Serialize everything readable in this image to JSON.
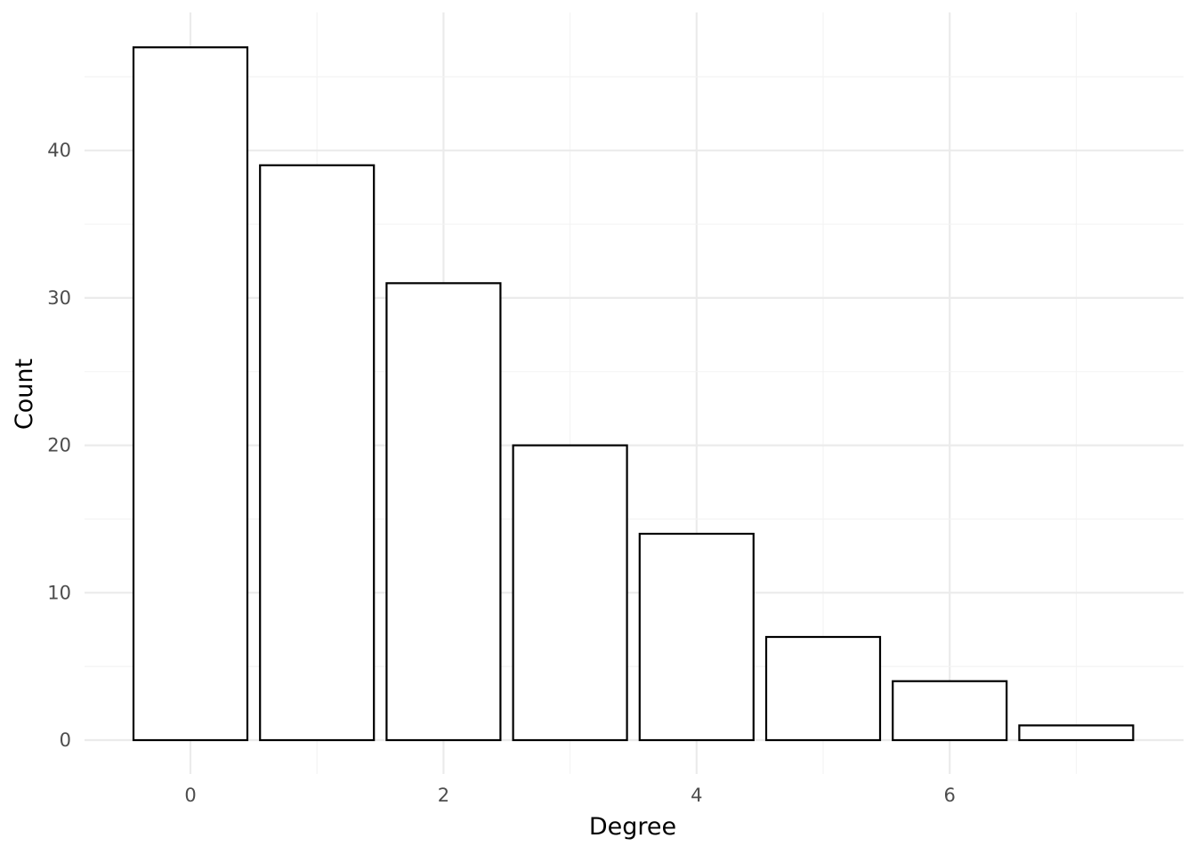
{
  "chart_data": {
    "type": "bar",
    "title": "",
    "xlabel": "Degree",
    "ylabel": "Count",
    "x": [
      0,
      1,
      2,
      3,
      4,
      5,
      6,
      7
    ],
    "values": [
      47,
      39,
      31,
      20,
      14,
      7,
      4,
      1
    ],
    "xlim": [
      -0.5,
      7.5
    ],
    "ylim": [
      0,
      47
    ],
    "x_ticks": [
      0,
      2,
      4,
      6
    ],
    "x_tick_labels": [
      "0",
      "2",
      "4",
      "6"
    ],
    "y_ticks": [
      0,
      10,
      20,
      30,
      40
    ],
    "y_tick_labels": [
      "0",
      "10",
      "20",
      "30",
      "40"
    ],
    "grid": true,
    "bar_fill": "#ffffff",
    "bar_stroke": "#000000",
    "legend": "none"
  }
}
